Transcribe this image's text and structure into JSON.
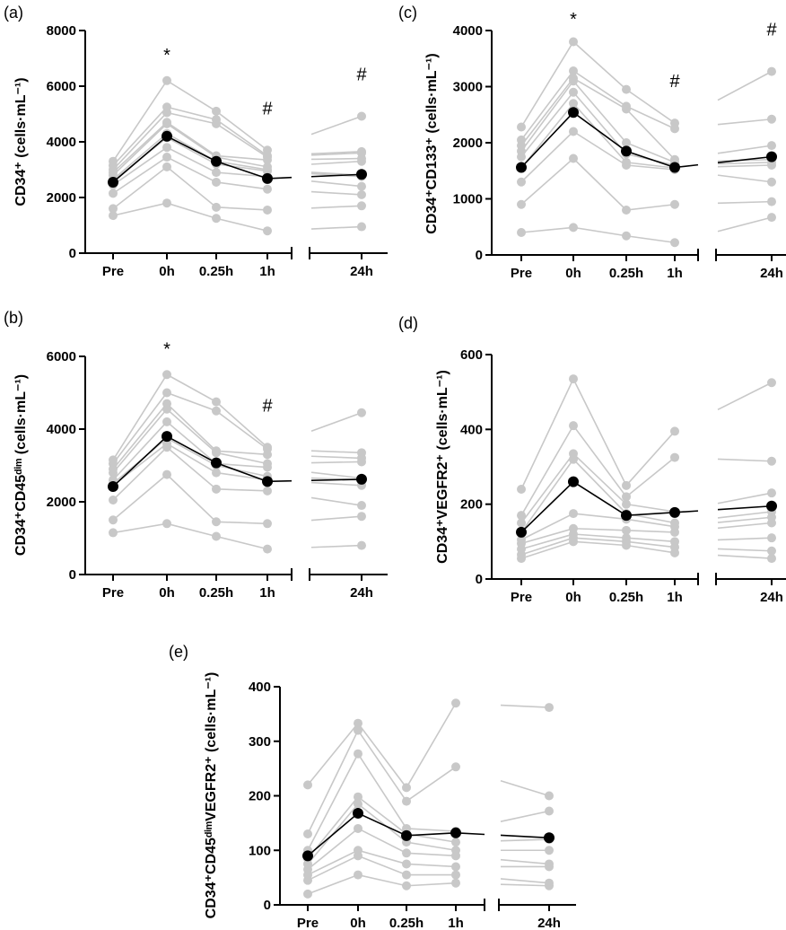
{
  "figure": {
    "background": "#ffffff"
  },
  "colors": {
    "individual": "#c8c8c8",
    "mean": "#000000",
    "axis": "#000000"
  },
  "chart_data": [
    {
      "panel": "(a)",
      "type": "line",
      "categories": [
        "Pre",
        "0h",
        "0.25h",
        "1h",
        "24h"
      ],
      "ylabel": "CD34⁺ (cells·mL⁻¹)",
      "ylim": [
        0,
        8000
      ],
      "yticks": [
        0,
        2000,
        4000,
        6000,
        8000
      ],
      "grid": false,
      "broken_x_axis": "between 1h and 24h",
      "mean": [
        2550,
        4200,
        3300,
        2680,
        2830
      ],
      "individuals": [
        [
          3300,
          6200,
          5100,
          3700,
          4920
        ],
        [
          3150,
          5250,
          4800,
          3500,
          3650
        ],
        [
          3000,
          5050,
          4650,
          3450,
          3600
        ],
        [
          2900,
          4700,
          3500,
          3350,
          3400
        ],
        [
          2800,
          4650,
          3450,
          3100,
          3300
        ],
        [
          2650,
          4300,
          3300,
          3000,
          2800
        ],
        [
          2600,
          4150,
          3200,
          2950,
          2750
        ],
        [
          2450,
          3800,
          2900,
          2750,
          2400
        ],
        [
          2150,
          3450,
          2550,
          2300,
          2100
        ],
        [
          1600,
          3100,
          1650,
          1550,
          1700
        ],
        [
          1350,
          1800,
          1250,
          800,
          950
        ]
      ],
      "annotations": [
        {
          "category": "0h",
          "text": "*"
        },
        {
          "category": "1h",
          "text": "#"
        },
        {
          "category": "24h",
          "text": "#"
        }
      ]
    },
    {
      "panel": "(b)",
      "type": "line",
      "categories": [
        "Pre",
        "0h",
        "0.25h",
        "1h",
        "24h"
      ],
      "ylabel": "CD34⁺CD45ᵈⁱᵐ (cells·mL⁻¹)",
      "ylim": [
        0,
        6000
      ],
      "yticks": [
        0,
        2000,
        4000,
        6000
      ],
      "grid": false,
      "broken_x_axis": "between 1h and 24h",
      "mean": [
        2420,
        3800,
        3070,
        2560,
        2620
      ],
      "individuals": [
        [
          3150,
          5500,
          4750,
          3500,
          4450
        ],
        [
          3050,
          5000,
          4500,
          3450,
          3350
        ],
        [
          2900,
          4700,
          3400,
          3300,
          3200
        ],
        [
          2800,
          4550,
          3350,
          3050,
          3100
        ],
        [
          2600,
          4200,
          3050,
          2950,
          2650
        ],
        [
          2500,
          3750,
          3000,
          2700,
          2600
        ],
        [
          2450,
          3600,
          2800,
          2600,
          2450
        ],
        [
          2050,
          3500,
          2350,
          2300,
          1900
        ],
        [
          1500,
          2750,
          1450,
          1400,
          1600
        ],
        [
          1150,
          1400,
          1050,
          700,
          800
        ]
      ],
      "annotations": [
        {
          "category": "0h",
          "text": "*"
        },
        {
          "category": "1h",
          "text": "#"
        }
      ]
    },
    {
      "panel": "(c)",
      "type": "line",
      "categories": [
        "Pre",
        "0h",
        "0.25h",
        "1h",
        "24h"
      ],
      "ylabel": "CD34⁺CD133⁺ (cells·mL⁻¹)",
      "ylim": [
        0,
        4000
      ],
      "yticks": [
        0,
        1000,
        2000,
        3000,
        4000
      ],
      "grid": false,
      "broken_x_axis": "between 1h and 24h",
      "mean": [
        1560,
        2540,
        1850,
        1560,
        1750
      ],
      "individuals": [
        [
          2280,
          3800,
          2950,
          2350,
          3270
        ],
        [
          2050,
          3280,
          2650,
          2250,
          2420
        ],
        [
          1950,
          3150,
          2600,
          1700,
          1950
        ],
        [
          1850,
          3100,
          2000,
          1650,
          1700
        ],
        [
          1750,
          2900,
          1800,
          1600,
          1650
        ],
        [
          1550,
          2700,
          1650,
          1550,
          1600
        ],
        [
          1300,
          2200,
          1600,
          1520,
          1300
        ],
        [
          900,
          1720,
          800,
          900,
          950
        ],
        [
          400,
          490,
          340,
          220,
          670
        ]
      ],
      "annotations": [
        {
          "category": "0h",
          "text": "*"
        },
        {
          "category": "1h",
          "text": "#"
        },
        {
          "category": "24h",
          "text": "#"
        }
      ]
    },
    {
      "panel": "(d)",
      "type": "line",
      "categories": [
        "Pre",
        "0h",
        "0.25h",
        "1h",
        "24h"
      ],
      "ylabel": "CD34⁺VEGFR2⁺ (cells·mL⁻¹)",
      "ylim": [
        0,
        600
      ],
      "yticks": [
        0,
        200,
        400,
        600
      ],
      "grid": false,
      "broken_x_axis": "between 1h and 24h",
      "mean": [
        125,
        260,
        170,
        178,
        195
      ],
      "individuals": [
        [
          240,
          535,
          250,
          395,
          525
        ],
        [
          170,
          410,
          220,
          325,
          315
        ],
        [
          150,
          335,
          200,
          180,
          230
        ],
        [
          125,
          320,
          175,
          150,
          180
        ],
        [
          105,
          175,
          160,
          140,
          165
        ],
        [
          95,
          135,
          130,
          125,
          150
        ],
        [
          80,
          120,
          110,
          100,
          110
        ],
        [
          65,
          110,
          100,
          85,
          75
        ],
        [
          55,
          100,
          90,
          70,
          55
        ]
      ],
      "annotations": []
    },
    {
      "panel": "(e)",
      "type": "line",
      "categories": [
        "Pre",
        "0h",
        "0.25h",
        "1h",
        "24h"
      ],
      "ylabel": "CD34⁺CD45ᵈⁱᵐVEGFR2⁺ (cells·mL⁻¹)",
      "ylim": [
        0,
        400
      ],
      "yticks": [
        0,
        100,
        200,
        300,
        400
      ],
      "grid": false,
      "broken_x_axis": "between 1h and 24h",
      "mean": [
        90,
        168,
        127,
        132,
        123
      ],
      "individuals": [
        [
          220,
          333,
          215,
          370,
          362
        ],
        [
          130,
          320,
          190,
          253,
          200
        ],
        [
          100,
          277,
          140,
          135,
          172
        ],
        [
          85,
          198,
          130,
          115,
          120
        ],
        [
          75,
          185,
          115,
          100,
          100
        ],
        [
          65,
          140,
          95,
          90,
          75
        ],
        [
          55,
          100,
          75,
          70,
          70
        ],
        [
          45,
          90,
          55,
          55,
          40
        ],
        [
          20,
          55,
          35,
          40,
          35
        ]
      ],
      "annotations": []
    }
  ]
}
